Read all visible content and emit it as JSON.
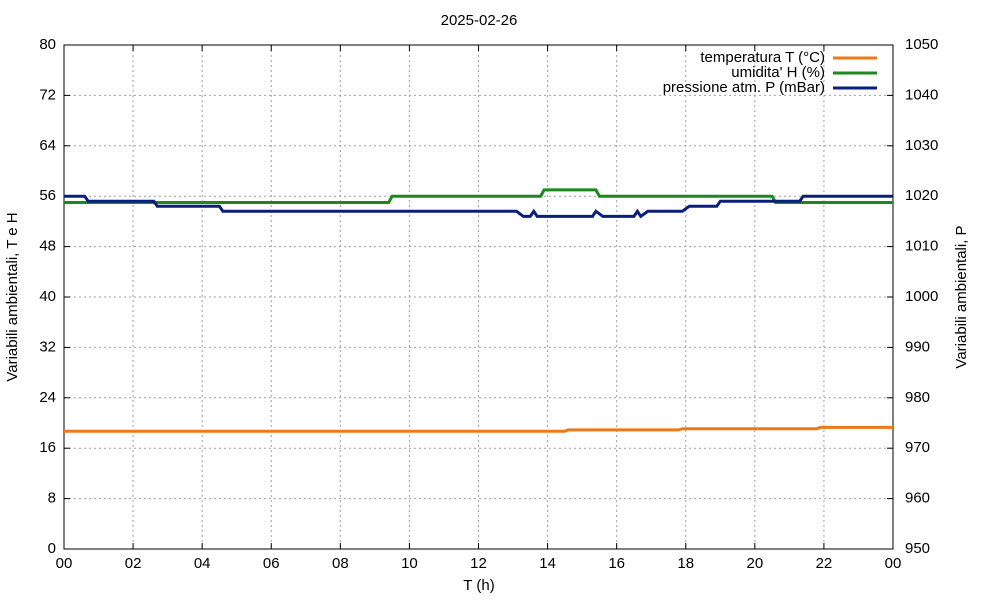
{
  "chart_data": {
    "type": "line",
    "title": "2025-02-26",
    "x_label": "T (h)",
    "y_label": "Variabili ambientali, T e H",
    "y2_label": "Variabili ambientali, P",
    "xlim": [
      0,
      24
    ],
    "xticks": [
      {
        "value": 0,
        "label": "00"
      },
      {
        "value": 2,
        "label": "02"
      },
      {
        "value": 4,
        "label": "04"
      },
      {
        "value": 6,
        "label": "06"
      },
      {
        "value": 8,
        "label": "08"
      },
      10,
      12,
      14,
      16,
      18,
      20,
      22,
      {
        "value": 24,
        "label": "00"
      }
    ],
    "ylim": [
      0,
      80
    ],
    "yticks": [
      0,
      8,
      16,
      24,
      32,
      40,
      48,
      56,
      64,
      72,
      80
    ],
    "y2lim": [
      950,
      1050
    ],
    "y2ticks": [
      950,
      960,
      970,
      980,
      990,
      1000,
      1010,
      1020,
      1030,
      1040,
      1050
    ],
    "grid": true,
    "legend": "top-right",
    "series": [
      {
        "name": "temperatura T (°C)",
        "color": "#f07818",
        "x": [
          0,
          14.5,
          14.6,
          17.8,
          17.9,
          21.8,
          21.9,
          24
        ],
        "values": [
          18.7,
          18.7,
          18.9,
          18.9,
          19.1,
          19.1,
          19.3,
          19.3
        ]
      },
      {
        "name": "umidita' H (%)",
        "color": "#1a8a1a",
        "x": [
          0,
          9.4,
          9.5,
          13.8,
          13.9,
          15.4,
          15.5,
          20.5,
          20.6,
          24
        ],
        "values": [
          55,
          55,
          56,
          56,
          57,
          57,
          56,
          56,
          55,
          55
        ]
      },
      {
        "name": "pressione atm. P (mBar)",
        "color": "#0a1f7a",
        "axis": "y2",
        "x": [
          0,
          0.6,
          0.7,
          2.6,
          2.7,
          4.5,
          4.6,
          13.1,
          13.3,
          13.5,
          13.6,
          13.7,
          15.3,
          15.4,
          15.6,
          16.5,
          16.6,
          16.7,
          16.9,
          17.9,
          18.1,
          18.9,
          19.0,
          21.3,
          21.4,
          24
        ],
        "values": [
          1020,
          1020,
          1019,
          1019,
          1018,
          1018,
          1017,
          1017,
          1016,
          1016,
          1017,
          1016,
          1016,
          1017,
          1016,
          1016,
          1017,
          1016,
          1017,
          1017,
          1018,
          1018,
          1019,
          1019,
          1020,
          1020
        ]
      }
    ]
  }
}
